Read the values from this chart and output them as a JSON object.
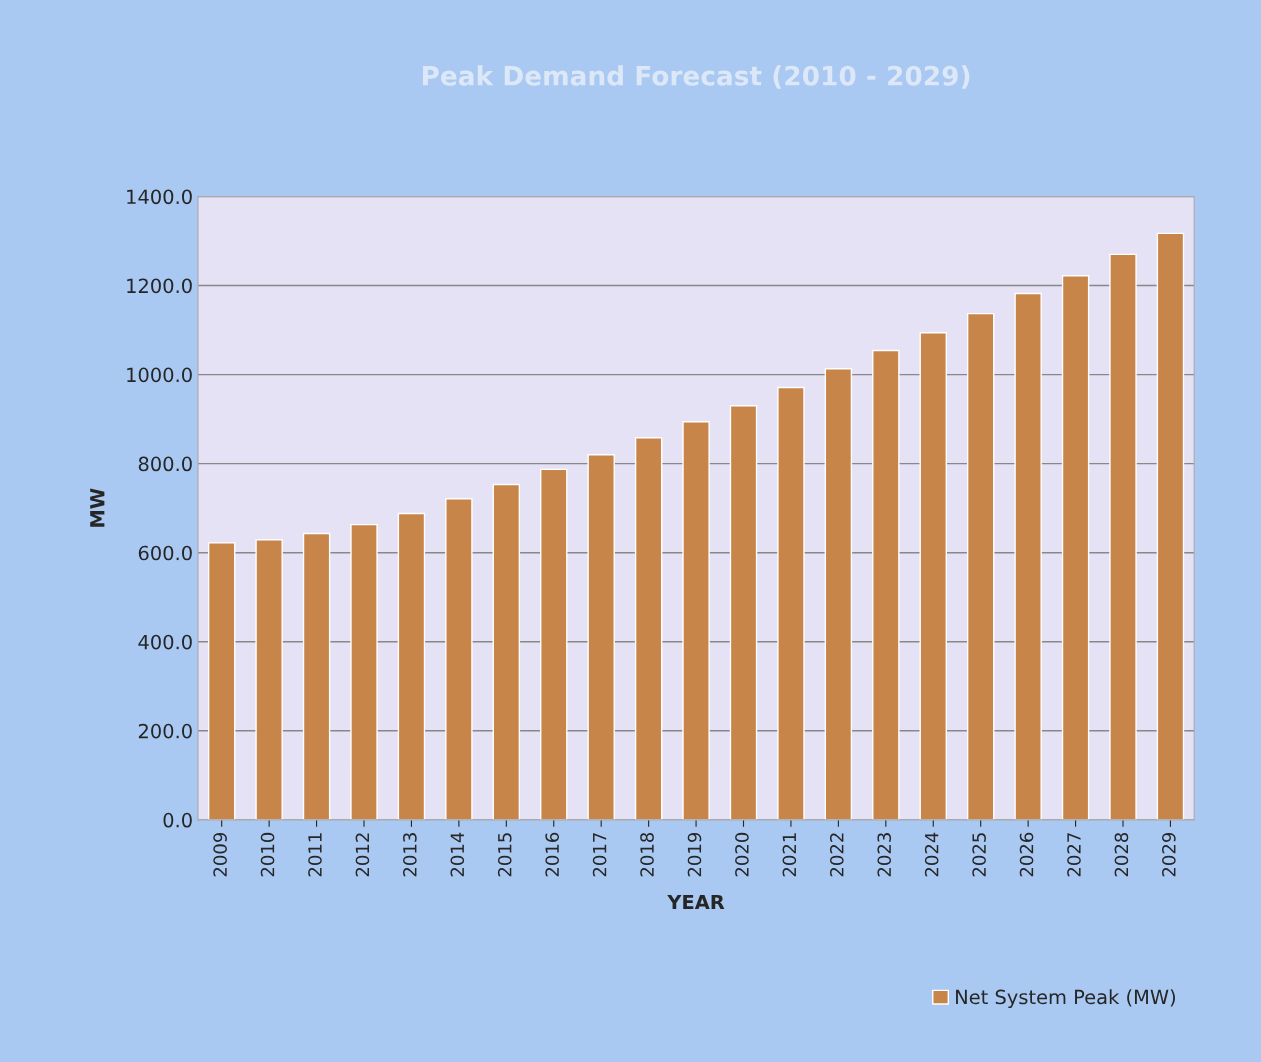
{
  "chart_data": {
    "type": "bar",
    "title": "Peak Demand Forecast (2010 - 2029)",
    "xlabel": "YEAR",
    "ylabel": "MW",
    "categories": [
      "2009",
      "2010",
      "2011",
      "2012",
      "2013",
      "2014",
      "2015",
      "2016",
      "2017",
      "2018",
      "2019",
      "2020",
      "2021",
      "2022",
      "2023",
      "2024",
      "2025",
      "2026",
      "2027",
      "2028",
      "2029"
    ],
    "series": [
      {
        "name": "Net System Peak (MW)",
        "color": "#c8854a",
        "values": [
          622,
          629,
          643,
          663,
          688,
          721,
          753,
          787,
          820,
          858,
          894,
          930,
          971,
          1013,
          1054,
          1094,
          1137,
          1182,
          1222,
          1270,
          1317
        ]
      }
    ],
    "ylim": [
      0,
      1400
    ],
    "yticks": [
      {
        "value": 0,
        "label": "0.0"
      },
      {
        "value": 200,
        "label": "200.0"
      },
      {
        "value": 400,
        "label": "400.0"
      },
      {
        "value": 600,
        "label": "600.0"
      },
      {
        "value": 800,
        "label": "800.0"
      },
      {
        "value": 1000,
        "label": "1000.0"
      },
      {
        "value": 1200,
        "label": "1200.0"
      },
      {
        "value": 1400,
        "label": "1400.0"
      }
    ],
    "grid": "y",
    "legend": "bottom right"
  }
}
